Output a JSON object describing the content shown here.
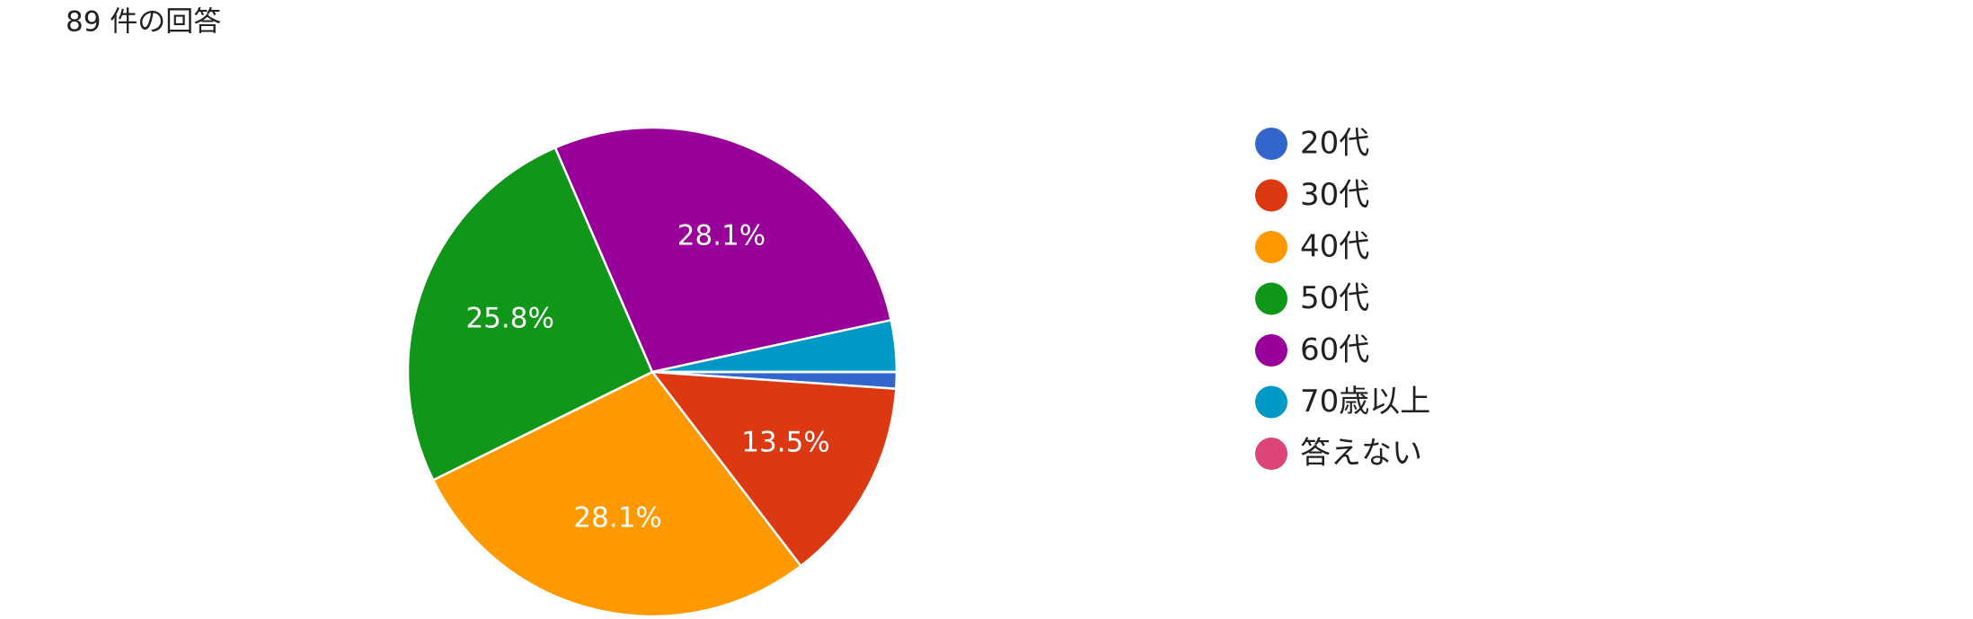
{
  "chart_data": {
    "type": "pie",
    "title": "89 件の回答",
    "categories": [
      "20代",
      "30代",
      "40代",
      "50代",
      "60代",
      "70歳以上",
      "答えない"
    ],
    "values": [
      1.1,
      13.5,
      28.1,
      25.8,
      28.1,
      3.4,
      0
    ],
    "value_labels": [
      null,
      "13.5%",
      "28.1%",
      "25.8%",
      "28.1%",
      null,
      null
    ],
    "colors": [
      "#3366cc",
      "#dc3912",
      "#ff9900",
      "#109618",
      "#990099",
      "#0099c6",
      "#dd4477"
    ],
    "legend": "right"
  }
}
